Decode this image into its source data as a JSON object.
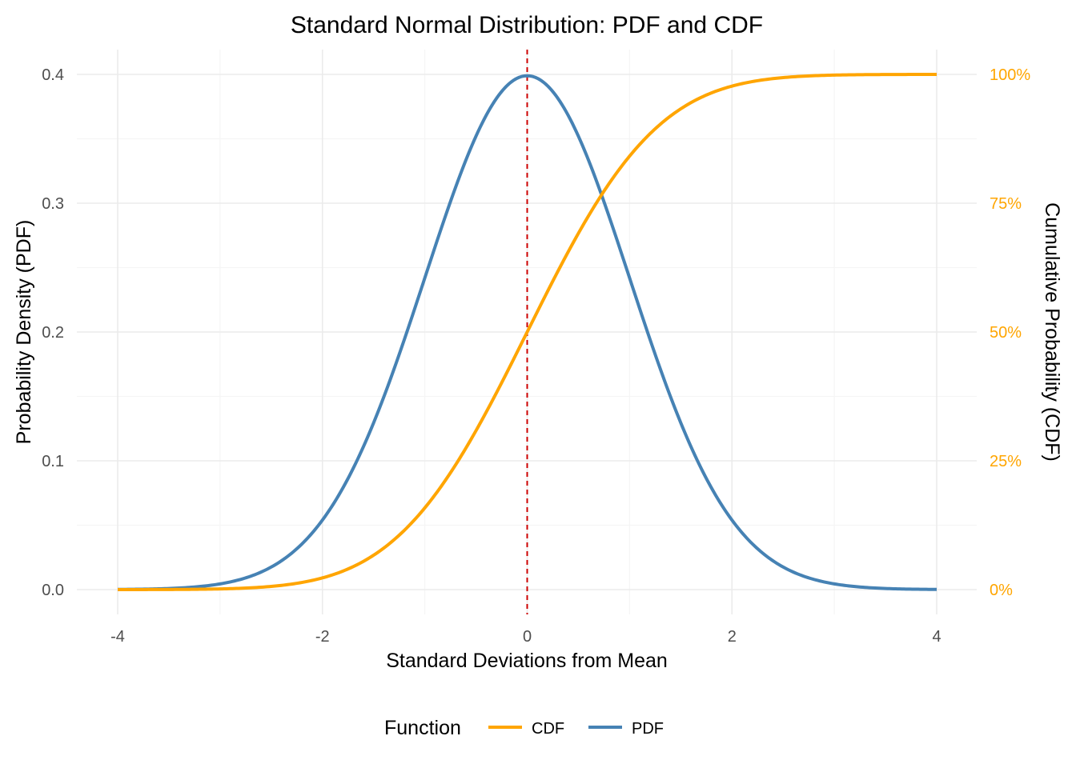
{
  "colors": {
    "pdf": "#4682b4",
    "cdf": "#ffa500",
    "mean_line": "#cc0000",
    "grid_major": "#ebebeb",
    "grid_minor": "#f5f5f5"
  },
  "chart_data": {
    "type": "line",
    "title": "Standard Normal Distribution: PDF and CDF",
    "xlabel": "Standard Deviations from Mean",
    "ylabel": "Probability Density (PDF)",
    "y2label": "Cumulative Probability (CDF)",
    "xlim": [
      -4,
      4
    ],
    "ylim": [
      0,
      0.4
    ],
    "y2lim": [
      0,
      1
    ],
    "x_ticks": [
      -4,
      -2,
      0,
      2,
      4
    ],
    "x_tick_labels": [
      "-4",
      "-2",
      "0",
      "2",
      "4"
    ],
    "y_ticks": [
      0,
      0.1,
      0.2,
      0.3,
      0.4
    ],
    "y_tick_labels": [
      "0.0",
      "0.1",
      "0.2",
      "0.3",
      "0.4"
    ],
    "y2_ticks": [
      0,
      0.25,
      0.5,
      0.75,
      1
    ],
    "y2_tick_labels": [
      "0%",
      "25%",
      "50%",
      "75%",
      "100%"
    ],
    "grid": true,
    "reference_line": {
      "x": 0,
      "style": "dashed"
    },
    "legend": {
      "title": "Function",
      "position": "bottom",
      "entries": [
        "CDF",
        "PDF"
      ]
    },
    "x": [
      -4.0,
      -3.5,
      -3.0,
      -2.5,
      -2.0,
      -1.5,
      -1.0,
      -0.5,
      0.0,
      0.5,
      1.0,
      1.5,
      2.0,
      2.5,
      3.0,
      3.5,
      4.0
    ],
    "series": [
      {
        "name": "PDF",
        "axis": "left",
        "values": [
          0.0001,
          0.0009,
          0.0044,
          0.0175,
          0.054,
          0.1295,
          0.242,
          0.3521,
          0.3989,
          0.3521,
          0.242,
          0.1295,
          0.054,
          0.0175,
          0.0044,
          0.0009,
          0.0001
        ]
      },
      {
        "name": "CDF",
        "axis": "right",
        "values": [
          0.0,
          0.0002,
          0.0013,
          0.0062,
          0.0228,
          0.0668,
          0.1587,
          0.3085,
          0.5,
          0.6915,
          0.8413,
          0.9332,
          0.9772,
          0.9938,
          0.9987,
          0.9998,
          1.0
        ]
      }
    ]
  }
}
